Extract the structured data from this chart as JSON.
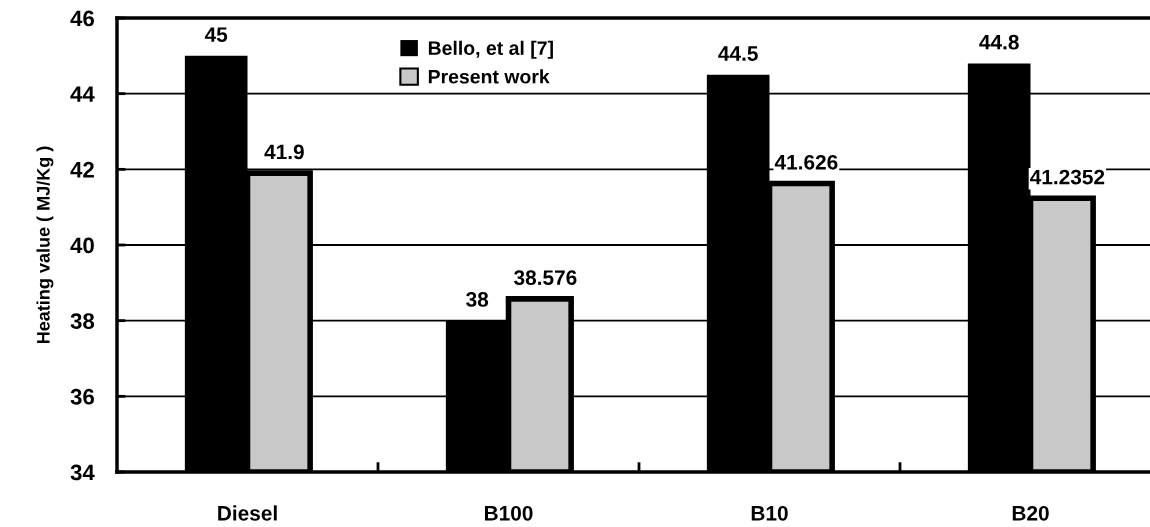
{
  "chart_data": {
    "type": "bar",
    "ylabel": "Heating value ( MJ/Kg )",
    "categories": [
      "Diesel",
      "B100",
      "B10",
      "B20"
    ],
    "series": [
      {
        "name": "Bello, et al [7]",
        "color": "#000000",
        "values": [
          45,
          38,
          44.5,
          44.8
        ]
      },
      {
        "name": "Present work",
        "color": "#c8c8c8",
        "values": [
          41.9,
          38.576,
          41.626,
          41.2352
        ]
      }
    ],
    "ylim": [
      34,
      46
    ],
    "yticks": [
      34,
      36,
      38,
      40,
      42,
      44,
      46
    ],
    "grid": "y",
    "legend": "top",
    "data_labels": true
  }
}
